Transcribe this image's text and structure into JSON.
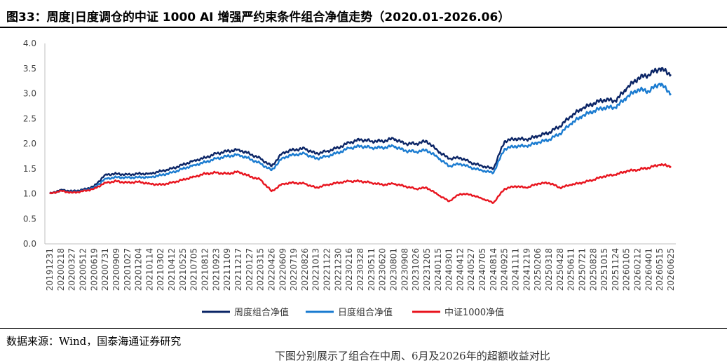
{
  "header": {
    "title": "图33：周度|日度调仓的中证 1000 AI 增强严约束条件组合净值走势（2020.01-2026.06）"
  },
  "footer": {
    "source": "数据来源：Wind，国泰海通证券研究",
    "truncated_note": "下图分别展示了组合在中周、6月及2026年的超额收益对比"
  },
  "colors": {
    "weekly": "#0b2566",
    "daily": "#1a7bd0",
    "csi1000": "#e8141e"
  },
  "chart_data": {
    "type": "line",
    "title": "",
    "xlabel": "",
    "ylabel": "",
    "ylim": [
      0,
      4
    ],
    "yticks": [
      "0.0",
      "0.5",
      "1.0",
      "1.5",
      "2.0",
      "2.5",
      "3.0",
      "3.5",
      "4.0"
    ],
    "grid": false,
    "legend_position": "bottom",
    "xtick_labels": [
      "20191231",
      "20200218",
      "20200327",
      "20200512",
      "20200619",
      "20200731",
      "20200909",
      "20201027",
      "20201204",
      "20210114",
      "20210302",
      "20210412",
      "20210525",
      "20210705",
      "20210812",
      "20210923",
      "20211109",
      "20211217",
      "20220127",
      "20220315",
      "20220426",
      "20220609",
      "20220719",
      "20220826",
      "20221013",
      "20221122",
      "20221230",
      "20230216",
      "20230328",
      "20230511",
      "20230620",
      "20230801",
      "20230908",
      "20231026",
      "20231205",
      "20240115",
      "20240301",
      "20240412",
      "20240527",
      "20240705",
      "20240814",
      "20240925",
      "20241111",
      "20241219",
      "20250206",
      "20250318",
      "20250428",
      "20250611",
      "20250721",
      "20250828",
      "20251015",
      "20251124",
      "20260105",
      "20260212",
      "20260401",
      "20260515",
      "20260625"
    ],
    "series": [
      {
        "name": "周度组合净值",
        "color_key": "weekly",
        "values": [
          1.0,
          1.08,
          1.05,
          1.08,
          1.15,
          1.38,
          1.4,
          1.38,
          1.4,
          1.4,
          1.45,
          1.5,
          1.58,
          1.66,
          1.72,
          1.8,
          1.85,
          1.88,
          1.8,
          1.7,
          1.55,
          1.82,
          1.88,
          1.9,
          1.8,
          1.85,
          1.92,
          2.02,
          2.08,
          2.05,
          2.05,
          2.1,
          2.0,
          2.0,
          2.05,
          1.85,
          1.7,
          1.72,
          1.62,
          1.55,
          1.5,
          2.05,
          2.1,
          2.08,
          2.15,
          2.22,
          2.35,
          2.55,
          2.7,
          2.8,
          2.88,
          2.85,
          3.1,
          3.3,
          3.38,
          3.5,
          3.38
        ]
      },
      {
        "name": "日度组合净值",
        "color_key": "daily",
        "values": [
          1.0,
          1.06,
          1.03,
          1.06,
          1.12,
          1.3,
          1.33,
          1.32,
          1.33,
          1.33,
          1.37,
          1.42,
          1.5,
          1.57,
          1.63,
          1.7,
          1.75,
          1.78,
          1.7,
          1.6,
          1.47,
          1.72,
          1.78,
          1.8,
          1.7,
          1.75,
          1.82,
          1.91,
          1.95,
          1.92,
          1.92,
          1.95,
          1.86,
          1.84,
          1.87,
          1.72,
          1.55,
          1.6,
          1.52,
          1.46,
          1.42,
          1.9,
          1.95,
          1.95,
          2.02,
          2.08,
          2.2,
          2.4,
          2.55,
          2.65,
          2.72,
          2.72,
          2.92,
          3.08,
          3.05,
          3.2,
          3.0
        ]
      },
      {
        "name": "中证1000净值",
        "color_key": "csi1000",
        "values": [
          1.0,
          1.06,
          1.02,
          1.05,
          1.1,
          1.22,
          1.25,
          1.22,
          1.24,
          1.2,
          1.18,
          1.22,
          1.28,
          1.34,
          1.4,
          1.42,
          1.4,
          1.44,
          1.35,
          1.28,
          1.05,
          1.2,
          1.22,
          1.2,
          1.12,
          1.18,
          1.22,
          1.25,
          1.25,
          1.22,
          1.18,
          1.2,
          1.15,
          1.1,
          1.12,
          0.98,
          0.85,
          1.0,
          0.98,
          0.9,
          0.82,
          1.1,
          1.15,
          1.12,
          1.2,
          1.22,
          1.12,
          1.18,
          1.22,
          1.28,
          1.35,
          1.38,
          1.45,
          1.48,
          1.52,
          1.58,
          1.55
        ]
      }
    ]
  }
}
